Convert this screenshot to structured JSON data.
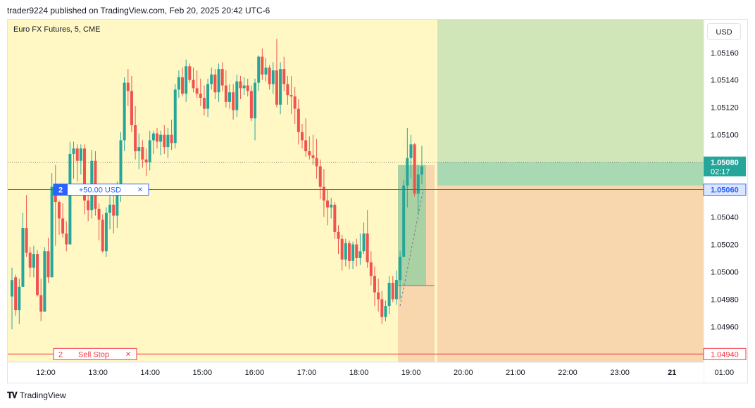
{
  "header": {
    "published_text": "trader9224 published on TradingView.com, Feb 20, 2025 20:42 UTC-6"
  },
  "symbol": {
    "title": "Euro FX Futures, 5, CME"
  },
  "currency_button": {
    "label": "USD"
  },
  "price_axis": {
    "ticks": [
      "1.05160",
      "1.05140",
      "1.05120",
      "1.05100",
      "1.05080",
      "1.05060",
      "1.05040",
      "1.05020",
      "1.05000",
      "1.04980",
      "1.04960",
      "1.04940"
    ],
    "last_price_label": "1.05080",
    "countdown_label": "02:17",
    "order_price_label": "1.05060",
    "stop_price_label": "1.04940"
  },
  "time_axis": {
    "ticks": [
      "12:00",
      "13:00",
      "14:00",
      "15:00",
      "16:00",
      "17:00",
      "18:00",
      "19:00",
      "20:00",
      "21:00",
      "22:00",
      "23:00",
      "21",
      "01:00"
    ]
  },
  "position_line": {
    "qty": "2",
    "pnl": "+50.00 USD",
    "close_icon": "×"
  },
  "stop_order": {
    "qty": "2",
    "label": "Sell Stop",
    "close_icon": "×"
  },
  "footer": {
    "brand": "TradingView",
    "logo_icon": "tradingview-logo-icon"
  },
  "colors": {
    "up": "#26a69a",
    "down": "#ef5350",
    "session_background": "#fff8c4",
    "profit_zone": "#d0e6b8",
    "loss_zone": "#f8d6ae",
    "order_line": "#2962ff",
    "stop_line": "#f23645"
  },
  "chart_data": {
    "type": "candlestick",
    "title": "Euro FX Futures, 5, CME",
    "xlabel": "",
    "ylabel": "",
    "ylim": [
      1.04934,
      1.05184
    ],
    "current_price": 1.0508,
    "order_price": 1.0506,
    "stop_price": 1.0494,
    "long_position_tool": {
      "entry": 1.0506,
      "take_profit": 1.05184,
      "stop_loss": 1.0494,
      "second_entry": 1.05063
    },
    "candles": [
      [
        1.04982,
        1.05003,
        1.04958,
        1.04994
      ],
      [
        1.04996,
        1.04998,
        1.04968,
        1.04972
      ],
      [
        1.04972,
        1.04995,
        1.04962,
        1.04989
      ],
      [
        1.04989,
        1.05043,
        1.04989,
        1.05032
      ],
      [
        1.05032,
        1.05056,
        1.05011,
        1.05014
      ],
      [
        1.05014,
        1.05018,
        1.04996,
        1.05003
      ],
      [
        1.05003,
        1.05019,
        1.04996,
        1.05013
      ],
      [
        1.05013,
        1.05016,
        1.04982,
        1.04983
      ],
      [
        1.04983,
        1.04995,
        1.04964,
        1.04971
      ],
      [
        1.04971,
        1.05018,
        1.04971,
        1.05015
      ],
      [
        1.05015,
        1.05025,
        1.04992,
        1.04996
      ],
      [
        1.04996,
        1.05072,
        1.04996,
        1.05062
      ],
      [
        1.05062,
        1.05078,
        1.05019,
        1.05051
      ],
      [
        1.05051,
        1.05052,
        1.05027,
        1.05039
      ],
      [
        1.05039,
        1.0505,
        1.05025,
        1.05028
      ],
      [
        1.05028,
        1.05037,
        1.05015,
        1.0502
      ],
      [
        1.0502,
        1.05095,
        1.0502,
        1.05086
      ],
      [
        1.05086,
        1.05095,
        1.05068,
        1.0509
      ],
      [
        1.0509,
        1.05093,
        1.05066,
        1.05081
      ],
      [
        1.05081,
        1.05093,
        1.05071,
        1.0509
      ],
      [
        1.0509,
        1.05093,
        1.05042,
        1.05052
      ],
      [
        1.05052,
        1.05061,
        1.05037,
        1.05045
      ],
      [
        1.05045,
        1.05089,
        1.05039,
        1.05081
      ],
      [
        1.05081,
        1.05088,
        1.05041,
        1.05046
      ],
      [
        1.05046,
        1.0505,
        1.05023,
        1.05038
      ],
      [
        1.05038,
        1.05042,
        1.05014,
        1.05015
      ],
      [
        1.05015,
        1.05047,
        1.05011,
        1.05043
      ],
      [
        1.05043,
        1.05064,
        1.05031,
        1.05049
      ],
      [
        1.05049,
        1.05059,
        1.05028,
        1.05041
      ],
      [
        1.05041,
        1.05066,
        1.05032,
        1.05059
      ],
      [
        1.05059,
        1.05102,
        1.05051,
        1.05096
      ],
      [
        1.05096,
        1.05142,
        1.05088,
        1.05138
      ],
      [
        1.05138,
        1.05148,
        1.05121,
        1.05132
      ],
      [
        1.05132,
        1.05143,
        1.05102,
        1.05107
      ],
      [
        1.05107,
        1.05121,
        1.05082,
        1.05088
      ],
      [
        1.05088,
        1.05101,
        1.05075,
        1.05091
      ],
      [
        1.05091,
        1.05096,
        1.05076,
        1.05082
      ],
      [
        1.05082,
        1.0509,
        1.0507,
        1.0508
      ],
      [
        1.0508,
        1.05103,
        1.05074,
        1.05096
      ],
      [
        1.05096,
        1.05103,
        1.05086,
        1.05101
      ],
      [
        1.05101,
        1.05105,
        1.0509,
        1.05095
      ],
      [
        1.05095,
        1.05103,
        1.05085,
        1.051
      ],
      [
        1.051,
        1.05107,
        1.05086,
        1.05091
      ],
      [
        1.05091,
        1.05105,
        1.05083,
        1.051
      ],
      [
        1.051,
        1.05111,
        1.05089,
        1.05094
      ],
      [
        1.05094,
        1.05137,
        1.0509,
        1.05133
      ],
      [
        1.05133,
        1.05147,
        1.05127,
        1.05142
      ],
      [
        1.05142,
        1.05149,
        1.05128,
        1.0513
      ],
      [
        1.0513,
        1.05155,
        1.05124,
        1.0515
      ],
      [
        1.0515,
        1.05152,
        1.05138,
        1.0514
      ],
      [
        1.0514,
        1.05149,
        1.05131,
        1.05134
      ],
      [
        1.05134,
        1.05147,
        1.05127,
        1.0513
      ],
      [
        1.0513,
        1.05141,
        1.05121,
        1.05127
      ],
      [
        1.05127,
        1.05136,
        1.05114,
        1.05119
      ],
      [
        1.05119,
        1.05141,
        1.05113,
        1.05137
      ],
      [
        1.05137,
        1.05149,
        1.05133,
        1.05144
      ],
      [
        1.05144,
        1.05148,
        1.05126,
        1.05131
      ],
      [
        1.05131,
        1.05152,
        1.05124,
        1.05148
      ],
      [
        1.05148,
        1.05153,
        1.05132,
        1.05136
      ],
      [
        1.05136,
        1.05147,
        1.0512,
        1.05124
      ],
      [
        1.05124,
        1.05137,
        1.05119,
        1.05131
      ],
      [
        1.05131,
        1.05137,
        1.05111,
        1.05118
      ],
      [
        1.05118,
        1.05144,
        1.05113,
        1.05139
      ],
      [
        1.05139,
        1.05143,
        1.05126,
        1.05134
      ],
      [
        1.05134,
        1.05142,
        1.05129,
        1.05136
      ],
      [
        1.05136,
        1.05141,
        1.05128,
        1.05132
      ],
      [
        1.05132,
        1.05136,
        1.0511,
        1.05112
      ],
      [
        1.05112,
        1.05141,
        1.05096,
        1.05138
      ],
      [
        1.05138,
        1.05158,
        1.05132,
        1.05157
      ],
      [
        1.05157,
        1.05163,
        1.0514,
        1.05144
      ],
      [
        1.05144,
        1.05156,
        1.05139,
        1.05149
      ],
      [
        1.05149,
        1.05151,
        1.05133,
        1.05137
      ],
      [
        1.05137,
        1.05153,
        1.0513,
        1.05147
      ],
      [
        1.05147,
        1.0517,
        1.0512,
        1.05122
      ],
      [
        1.05122,
        1.05153,
        1.05115,
        1.05148
      ],
      [
        1.05148,
        1.05157,
        1.05132,
        1.05137
      ],
      [
        1.05137,
        1.05143,
        1.05122,
        1.05129
      ],
      [
        1.05129,
        1.05143,
        1.05115,
        1.05128
      ],
      [
        1.05128,
        1.05135,
        1.05108,
        1.05119
      ],
      [
        1.05119,
        1.05126,
        1.05093,
        1.05102
      ],
      [
        1.05102,
        1.05108,
        1.0509,
        1.05096
      ],
      [
        1.05096,
        1.05112,
        1.05084,
        1.05088
      ],
      [
        1.05088,
        1.05099,
        1.05082,
        1.05085
      ],
      [
        1.05085,
        1.051,
        1.05078,
        1.05083
      ],
      [
        1.05083,
        1.05097,
        1.05068,
        1.05077
      ],
      [
        1.05077,
        1.05082,
        1.05053,
        1.05062
      ],
      [
        1.05062,
        1.05075,
        1.0504,
        1.05052
      ],
      [
        1.05052,
        1.0506,
        1.05034,
        1.05047
      ],
      [
        1.05047,
        1.05054,
        1.05039,
        1.05049
      ],
      [
        1.05049,
        1.05051,
        1.05024,
        1.05029
      ],
      [
        1.05029,
        1.05034,
        1.05013,
        1.05024
      ],
      [
        1.05024,
        1.05027,
        1.05001,
        1.05009
      ],
      [
        1.05009,
        1.05024,
        1.05004,
        1.05021
      ],
      [
        1.05021,
        1.05023,
        1.05002,
        1.05008
      ],
      [
        1.05008,
        1.05022,
        1.05002,
        1.0502
      ],
      [
        1.0502,
        1.05024,
        1.05004,
        1.0501
      ],
      [
        1.0501,
        1.05028,
        1.05005,
        1.05015
      ],
      [
        1.05015,
        1.05036,
        1.05013,
        1.05028
      ],
      [
        1.05028,
        1.05045,
        1.05003,
        1.05007
      ],
      [
        1.05007,
        1.05015,
        1.0499,
        1.04997
      ],
      [
        1.04997,
        1.05004,
        1.04975,
        1.04985
      ],
      [
        1.04985,
        1.04995,
        1.04971,
        1.0498
      ],
      [
        1.0498,
        1.04986,
        1.04962,
        1.04967
      ],
      [
        1.04967,
        1.04979,
        1.04964,
        1.04975
      ],
      [
        1.04975,
        1.04997,
        1.04969,
        1.04992
      ],
      [
        1.04992,
        1.04997,
        1.04978,
        1.0498
      ],
      [
        1.0498,
        1.05001,
        1.04976,
        1.04994
      ],
      [
        1.04994,
        1.05015,
        1.0498,
        1.05011
      ],
      [
        1.05011,
        1.05067,
        1.05011,
        1.05063
      ],
      [
        1.05063,
        1.05105,
        1.05047,
        1.05083
      ],
      [
        1.05083,
        1.051,
        1.05068,
        1.05093
      ],
      [
        1.05093,
        1.05094,
        1.05055,
        1.05057
      ],
      [
        1.05057,
        1.05078,
        1.05042,
        1.05071
      ],
      [
        1.05071,
        1.05092,
        1.05064,
        1.05077
      ]
    ]
  }
}
